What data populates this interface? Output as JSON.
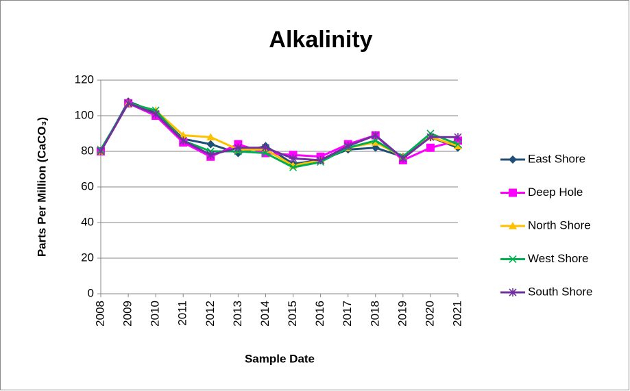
{
  "chart_data": {
    "type": "line",
    "title": "Alkalinity",
    "x_label": "Sample Date",
    "y_label": "Parts Per Million (CaCO₃)",
    "categories": [
      "2008",
      "2009",
      "2010",
      "2011",
      "2012",
      "2013",
      "2014",
      "2015",
      "2016",
      "2017",
      "2018",
      "2019",
      "2020",
      "2021"
    ],
    "series": [
      {
        "name": "East Shore",
        "color": "#1f4e79",
        "marker": "diamond",
        "values": [
          80,
          108,
          102,
          87,
          84,
          79,
          83,
          73,
          75,
          81,
          82,
          77,
          88,
          82
        ]
      },
      {
        "name": "Deep Hole",
        "color": "#ff00ff",
        "marker": "square",
        "values": [
          80,
          107,
          100,
          85,
          77,
          84,
          79,
          78,
          77,
          84,
          89,
          75,
          82,
          86
        ]
      },
      {
        "name": "North Shore",
        "color": "#ffc000",
        "marker": "triangle",
        "values": [
          80,
          107,
          103,
          89,
          88,
          81,
          81,
          72,
          75,
          82,
          85,
          77,
          88,
          83
        ]
      },
      {
        "name": "West Shore",
        "color": "#00b050",
        "marker": "x",
        "values": [
          81,
          107,
          103,
          86,
          80,
          80,
          79,
          71,
          74,
          82,
          86,
          77,
          90,
          84
        ]
      },
      {
        "name": "South Shore",
        "color": "#7030a0",
        "marker": "star",
        "values": [
          80,
          107,
          101,
          86,
          78,
          82,
          82,
          76,
          75,
          83,
          89,
          76,
          88,
          88
        ]
      }
    ],
    "ylim": [
      0,
      120
    ],
    "yticks": [
      0,
      20,
      40,
      60,
      80,
      100,
      120
    ],
    "grid": true,
    "legend": "right"
  }
}
